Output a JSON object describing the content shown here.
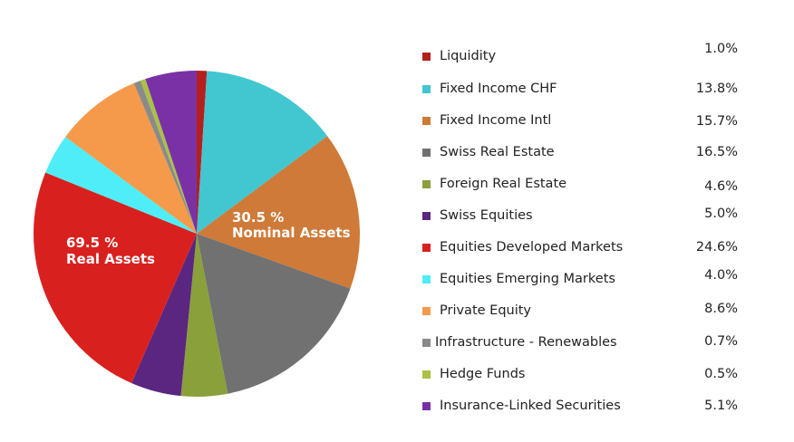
{
  "chart_data": {
    "type": "pie",
    "title": "",
    "legend_position": "right",
    "slices": [
      {
        "name": "Liquidity",
        "value_label": "1.0%",
        "value": 1.0,
        "color": "#b5201f"
      },
      {
        "name": "Fixed Income CHF",
        "value_label": "13.8%",
        "value": 13.8,
        "color": "#42c6d0"
      },
      {
        "name": "Fixed Income Intl",
        "value_label": "15.7%",
        "value": 15.7,
        "color": "#cf7a38"
      },
      {
        "name": "Swiss Real Estate",
        "value_label": "16.5%",
        "value": 16.5,
        "color": "#717171"
      },
      {
        "name": "Foreign Real Estate",
        "value_label": "4.6%",
        "value": 4.6,
        "color": "#8aa03a"
      },
      {
        "name": "Swiss Equities",
        "value_label": "5.0%",
        "value": 5.0,
        "color": "#5a2680"
      },
      {
        "name": "Equities Developed Markets",
        "value_label": "24.6%",
        "value": 24.6,
        "color": "#d8211f"
      },
      {
        "name": "Equities Emerging Markets",
        "value_label": "4.0%",
        "value": 4.0,
        "color": "#4fedf8"
      },
      {
        "name": "Private Equity",
        "value_label": "8.6%",
        "value": 8.6,
        "color": "#f59a4a"
      },
      {
        "name": "Infrastructure - Renewables",
        "value_label": "0.7%",
        "value": 0.7,
        "color": "#8a8a8a"
      },
      {
        "name": "Hedge Funds",
        "value_label": "0.5%",
        "value": 0.5,
        "color": "#a9c245"
      },
      {
        "name": "Insurance-Linked Securities",
        "value_label": "5.1%",
        "value": 5.1,
        "color": "#7a31a6"
      }
    ],
    "annotations": [
      {
        "id": "nominal",
        "line1": "30.5 %",
        "line2": "Nominal Assets"
      },
      {
        "id": "real",
        "line1": "69.5 %",
        "line2": "Real Assets"
      }
    ]
  }
}
